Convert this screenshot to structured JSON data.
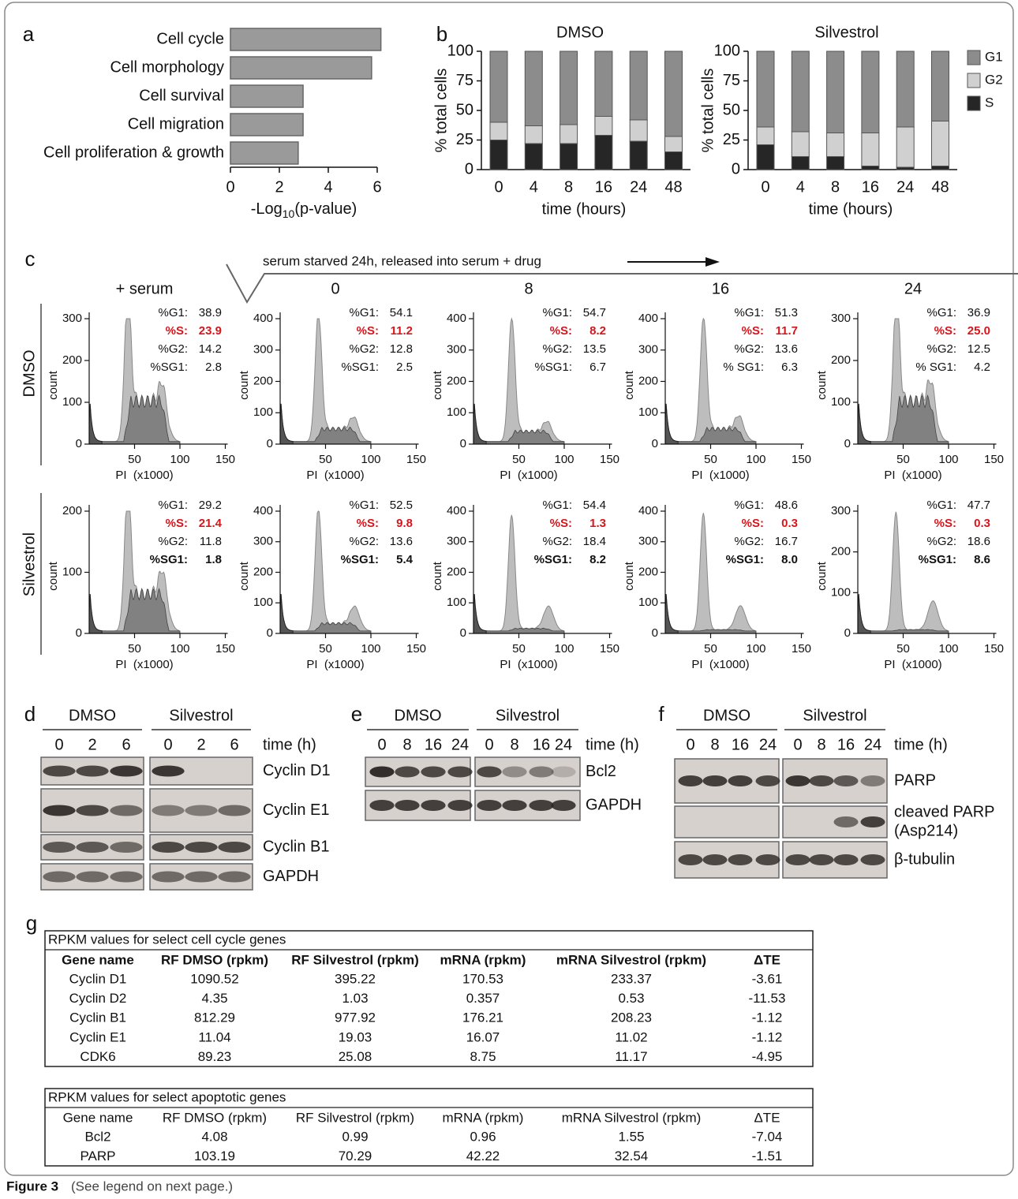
{
  "panel_labels": [
    "a",
    "b",
    "c",
    "d",
    "e",
    "f",
    "g"
  ],
  "chart_data": [
    {
      "type": "hbar",
      "categories": [
        "Cell cycle",
        "Cell morphology",
        "Cell survival",
        "Cell migration",
        "Cell proliferation & growth"
      ],
      "values": [
        6.15,
        5.77,
        2.97,
        2.97,
        2.77
      ],
      "color": "#9a9a9a",
      "xlim": [
        0,
        6
      ],
      "xticks": [
        0,
        2,
        4,
        6
      ],
      "xlabel": {
        "pre": "-Log",
        "sub": "10",
        "post": "(p-value)"
      }
    },
    {
      "type": "stacked",
      "title": "DMSO",
      "categories": [
        "0",
        "4",
        "8",
        "16",
        "24",
        "48"
      ],
      "series": [
        {
          "name": "S",
          "color": "#262626",
          "values": [
            25,
            22,
            22,
            29,
            24,
            15
          ]
        },
        {
          "name": "G2",
          "color": "#d0d0d0",
          "values": [
            15,
            15,
            16,
            16,
            18,
            13
          ]
        },
        {
          "name": "G1",
          "color": "#8c8c8c",
          "values": [
            60,
            63,
            62,
            55,
            58,
            72
          ]
        }
      ],
      "ylim": [
        0,
        100
      ],
      "yticks": [
        0,
        25,
        50,
        75,
        100
      ],
      "ylabel": "% total cells",
      "xlabel": "time (hours)",
      "legend": false
    },
    {
      "type": "stacked",
      "title": "Silvestrol",
      "categories": [
        "0",
        "4",
        "8",
        "16",
        "24",
        "48"
      ],
      "series": [
        {
          "name": "S",
          "color": "#262626",
          "values": [
            21,
            11,
            11,
            3,
            2,
            3
          ]
        },
        {
          "name": "G2",
          "color": "#d0d0d0",
          "values": [
            15,
            21,
            20,
            28,
            34,
            38
          ]
        },
        {
          "name": "G1",
          "color": "#8c8c8c",
          "values": [
            64,
            68,
            69,
            69,
            64,
            59
          ]
        }
      ],
      "ylim": [
        0,
        100
      ],
      "yticks": [
        0,
        25,
        50,
        75,
        100
      ],
      "ylabel": "% total cells",
      "xlabel": "time (hours)",
      "legend": "right"
    }
  ],
  "flow": {
    "header": "serum starved 24h,  released into serum + drug",
    "columns": [
      "+ serum",
      "0",
      "8",
      "16",
      "24"
    ],
    "xlim": [
      0,
      150
    ],
    "xticks": [
      50,
      100,
      150
    ],
    "xlabel": "PI  (x1000)",
    "ylabel": "count",
    "rows": [
      {
        "name": "DMSO",
        "panels": [
          {
            "yticks": [
              0,
              100,
              200,
              300
            ],
            "stats": [
              {
                "label": "%G1:",
                "value": "38.9"
              },
              {
                "label": "%S:",
                "value": "23.9",
                "style": "red"
              },
              {
                "label": "%G2:",
                "value": "14.2"
              },
              {
                "label": "%SG1:",
                "value": "2.8"
              }
            ]
          },
          {
            "yticks": [
              0,
              100,
              200,
              300,
              400
            ],
            "stats": [
              {
                "label": "%G1:",
                "value": "54.1"
              },
              {
                "label": "%S:",
                "value": "11.2",
                "style": "red"
              },
              {
                "label": "%G2:",
                "value": "12.8"
              },
              {
                "label": "%SG1:",
                "value": "2.5"
              }
            ]
          },
          {
            "yticks": [
              0,
              100,
              200,
              300,
              400
            ],
            "stats": [
              {
                "label": "%G1:",
                "value": "54.7"
              },
              {
                "label": "%S:",
                "value": "8.2",
                "style": "red"
              },
              {
                "label": "%G2:",
                "value": "13.5"
              },
              {
                "label": "%SG1:",
                "value": "6.7"
              }
            ]
          },
          {
            "yticks": [
              0,
              100,
              200,
              300,
              400
            ],
            "stats": [
              {
                "label": "%G1:",
                "value": "51.3"
              },
              {
                "label": "%S:",
                "value": "11.7",
                "style": "red"
              },
              {
                "label": "%G2:",
                "value": "13.6"
              },
              {
                "label": "% SG1:",
                "value": "6.3"
              }
            ]
          },
          {
            "yticks": [
              0,
              100,
              200,
              300
            ],
            "stats": [
              {
                "label": "%G1:",
                "value": "36.9"
              },
              {
                "label": "%S:",
                "value": "25.0",
                "style": "red"
              },
              {
                "label": "%G2:",
                "value": "12.5"
              },
              {
                "label": "% SG1:",
                "value": "4.2"
              }
            ]
          }
        ]
      },
      {
        "name": "Silvestrol",
        "panels": [
          {
            "yticks": [
              0,
              100,
              200
            ],
            "stats": [
              {
                "label": "%G1:",
                "value": "29.2"
              },
              {
                "label": "%S:",
                "value": "21.4",
                "style": "red"
              },
              {
                "label": "%G2:",
                "value": "11.8"
              },
              {
                "label": "%SG1:",
                "value": "1.8",
                "style": "bold"
              }
            ]
          },
          {
            "yticks": [
              0,
              100,
              200,
              300,
              400
            ],
            "stats": [
              {
                "label": "%G1:",
                "value": "52.5"
              },
              {
                "label": "%S:",
                "value": "9.8",
                "style": "red"
              },
              {
                "label": "%G2:",
                "value": "13.6"
              },
              {
                "label": "%SG1:",
                "value": "5.4",
                "style": "bold"
              }
            ]
          },
          {
            "yticks": [
              0,
              100,
              200,
              300,
              400
            ],
            "stats": [
              {
                "label": "%G1:",
                "value": "54.4"
              },
              {
                "label": "%S:",
                "value": "1.3",
                "style": "red"
              },
              {
                "label": "%G2:",
                "value": "18.4"
              },
              {
                "label": "%SG1:",
                "value": "8.2",
                "style": "bold"
              }
            ]
          },
          {
            "yticks": [
              0,
              100,
              200,
              300,
              400
            ],
            "stats": [
              {
                "label": "%G1:",
                "value": "48.6"
              },
              {
                "label": "%S:",
                "value": "0.3",
                "style": "red"
              },
              {
                "label": "%G2:",
                "value": "16.7"
              },
              {
                "label": "%SG1:",
                "value": "8.0",
                "style": "bold"
              }
            ]
          },
          {
            "yticks": [
              0,
              100,
              200,
              300
            ],
            "stats": [
              {
                "label": "%G1:",
                "value": "47.7"
              },
              {
                "label": "%S:",
                "value": "0.3",
                "style": "red"
              },
              {
                "label": "%G2:",
                "value": "18.6"
              },
              {
                "label": "%SG1:",
                "value": "8.6",
                "style": "bold"
              }
            ]
          }
        ]
      }
    ]
  },
  "blots": {
    "d": {
      "groups": [
        "DMSO",
        "Silvestrol"
      ],
      "lanes": [
        [
          "0",
          "2",
          "6"
        ],
        [
          "0",
          "2",
          "6"
        ]
      ],
      "time_label": "time (h)",
      "bands": [
        [
          "Cyclin D1"
        ],
        [
          "Cyclin E1"
        ],
        [
          "Cyclin B1"
        ],
        [
          "GAPDH"
        ]
      ]
    },
    "e": {
      "groups": [
        "DMSO",
        "Silvestrol"
      ],
      "lanes": [
        [
          "0",
          "8",
          "16",
          "24"
        ],
        [
          "0",
          "8",
          "16",
          "24"
        ]
      ],
      "time_label": "time (h)",
      "bands": [
        [
          "Bcl2"
        ],
        [
          "GAPDH"
        ]
      ]
    },
    "f": {
      "groups": [
        "DMSO",
        "Silvestrol"
      ],
      "lanes": [
        [
          "0",
          "8",
          "16",
          "24"
        ],
        [
          "0",
          "8",
          "16",
          "24"
        ]
      ],
      "time_label": "time (h)",
      "bands": [
        [
          "PARP"
        ],
        [
          "cleaved PARP",
          "(Asp214)"
        ],
        [
          "β-tubulin"
        ]
      ]
    }
  },
  "tables": [
    {
      "title": "RPKM values for select cell cycle genes",
      "bold_header": true,
      "header": [
        "Gene name",
        "RF DMSO (rpkm)",
        "RF Silvestrol (rpkm)",
        "mRNA (rpkm)",
        "mRNA Silvestrol (rpkm)",
        "ΔTE"
      ],
      "rows": [
        [
          "Cyclin D1",
          "1090.52",
          "395.22",
          "170.53",
          "233.37",
          "-3.61"
        ],
        [
          "Cyclin D2",
          "4.35",
          "1.03",
          "0.357",
          "0.53",
          "-11.53"
        ],
        [
          "Cyclin B1",
          "812.29",
          "977.92",
          "176.21",
          "208.23",
          "-1.12"
        ],
        [
          "Cyclin E1",
          "11.04",
          "19.03",
          "16.07",
          "11.02",
          "-1.12"
        ],
        [
          "CDK6",
          "89.23",
          "25.08",
          "8.75",
          "11.17",
          "-4.95"
        ]
      ]
    },
    {
      "title": "RPKM values for select apoptotic genes",
      "bold_header": false,
      "header": [
        "Gene name",
        "RF DMSO (rpkm)",
        "RF Silvestrol (rpkm)",
        "mRNA (rpkm)",
        "mRNA Silvestrol (rpkm)",
        "ΔTE"
      ],
      "rows": [
        [
          "Bcl2",
          "4.08",
          "0.99",
          "0.96",
          "1.55",
          "-7.04"
        ],
        [
          "PARP",
          "103.19",
          "70.29",
          "42.22",
          "32.54",
          "-1.51"
        ]
      ]
    }
  ],
  "caption": {
    "label": "Figure 3",
    "text": "(See legend on next page.)"
  }
}
